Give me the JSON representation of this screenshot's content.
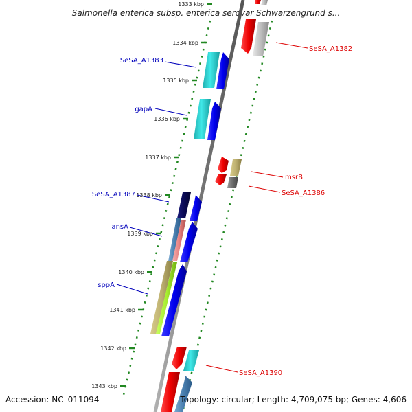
{
  "title": "Salmonella enterica subsp. enterica serovar Schwarzengrund s...",
  "footer": {
    "accession": "Accession: NC_011094",
    "topology": "Topology: circular; Length: 4,709,075 bp; Genes: 4,606"
  },
  "ticks": [
    "1333 kbp",
    "1334 kbp",
    "1335 kbp",
    "1336 kbp",
    "1337 kbp",
    "1338 kbp",
    "1339 kbp",
    "1340 kbp",
    "1341 kbp",
    "1342 kbp",
    "1343 kbp"
  ],
  "gene_labels": [
    {
      "text": "SeSA_A1382",
      "color": "#dd0000"
    },
    {
      "text": "SeSA_A1383",
      "color": "#0000bb"
    },
    {
      "text": "gapA",
      "color": "#0000bb"
    },
    {
      "text": "msrB",
      "color": "#dd0000"
    },
    {
      "text": "SeSA_A1386",
      "color": "#dd0000"
    },
    {
      "text": "SeSA_A1387",
      "color": "#0000bb"
    },
    {
      "text": "ansA",
      "color": "#0000bb"
    },
    {
      "text": "sppA",
      "color": "#0000bb"
    },
    {
      "text": "SeSA_A1390",
      "color": "#dd0000"
    }
  ],
  "colors": {
    "forward_strand": "#0000ee",
    "reverse_strand": "#ee0000",
    "backbone": "#888888",
    "ruler_dots": "#228822"
  }
}
